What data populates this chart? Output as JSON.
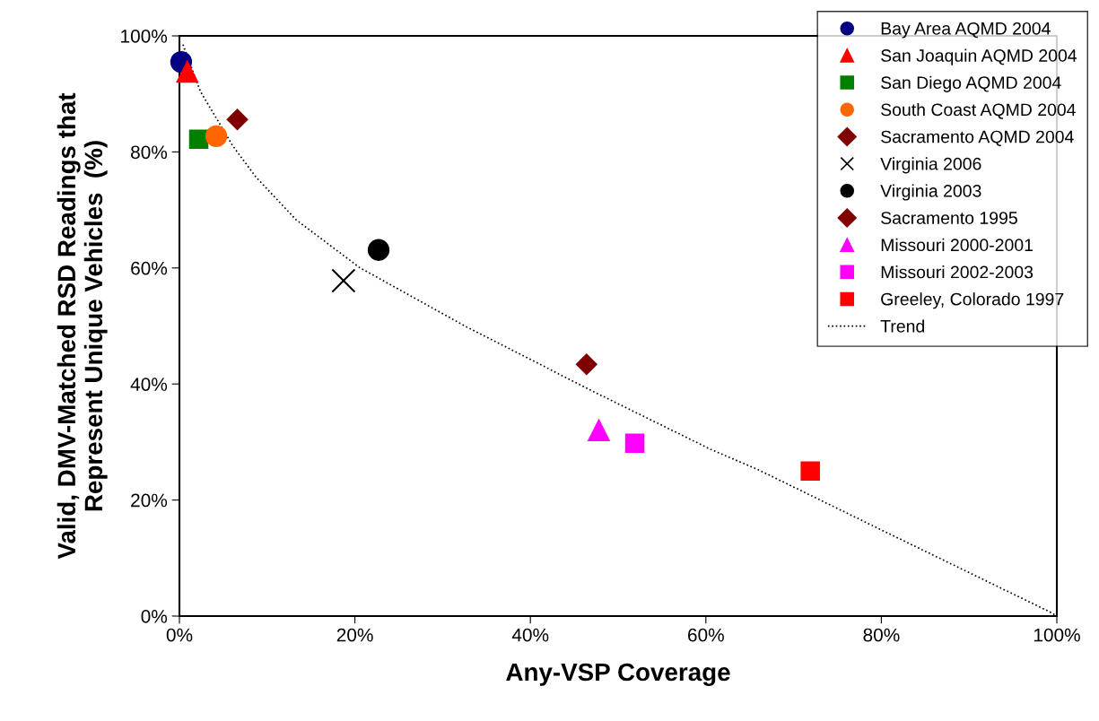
{
  "chart_data": {
    "type": "scatter",
    "xlabel": "Any-VSP Coverage",
    "ylabel": "Valid, DMV-Matched RSD Readings that\nRepresent Unique Vehicles  (%)",
    "xlim": [
      0,
      100
    ],
    "ylim": [
      0,
      100
    ],
    "xticks": [
      {
        "value": 0,
        "label": "0%"
      },
      {
        "value": 20,
        "label": "20%"
      },
      {
        "value": 40,
        "label": "40%"
      },
      {
        "value": 60,
        "label": "60%"
      },
      {
        "value": 80,
        "label": "80%"
      },
      {
        "value": 100,
        "label": "100%"
      }
    ],
    "yticks": [
      {
        "value": 0,
        "label": "0%"
      },
      {
        "value": 20,
        "label": "20%"
      },
      {
        "value": 40,
        "label": "40%"
      },
      {
        "value": 60,
        "label": "60%"
      },
      {
        "value": 80,
        "label": "80%"
      },
      {
        "value": 100,
        "label": "100%"
      }
    ],
    "grid": false,
    "legend": "top right",
    "series": [
      {
        "name": "Bay Area AQMD 2004",
        "color": "#000080",
        "marker": "circle",
        "x": [
          0.2
        ],
        "values": [
          95.5
        ]
      },
      {
        "name": "San Joaquin AQMD 2004",
        "color": "#ff0000",
        "marker": "triangle",
        "x": [
          0.9
        ],
        "values": [
          93.8
        ]
      },
      {
        "name": "San Diego AQMD 2004",
        "color": "#008000",
        "marker": "square",
        "x": [
          2.2
        ],
        "values": [
          82.2
        ]
      },
      {
        "name": "South Coast AQMD 2004",
        "color": "#ff6600",
        "marker": "circle",
        "x": [
          4.2
        ],
        "values": [
          82.7
        ]
      },
      {
        "name": "Sacramento AQMD 2004",
        "color": "#800000",
        "marker": "diamond",
        "x": [
          6.6
        ],
        "values": [
          85.6
        ]
      },
      {
        "name": "Virginia 2006",
        "color": "#000000",
        "marker": "cross",
        "x": [
          18.7
        ],
        "values": [
          57.8
        ]
      },
      {
        "name": "Virginia 2003",
        "color": "#000000",
        "marker": "circle",
        "x": [
          22.7
        ],
        "values": [
          63.1
        ]
      },
      {
        "name": "Sacramento 1995",
        "color": "#800000",
        "marker": "diamond",
        "x": [
          46.4
        ],
        "values": [
          43.4
        ]
      },
      {
        "name": "Missouri 2000-2001",
        "color": "#ff00ff",
        "marker": "triangle",
        "x": [
          47.8
        ],
        "values": [
          32.0
        ]
      },
      {
        "name": "Missouri 2002-2003",
        "color": "#ff00ff",
        "marker": "square",
        "x": [
          51.9
        ],
        "values": [
          29.8
        ]
      },
      {
        "name": "Greeley, Colorado 1997",
        "color": "#ff0000",
        "marker": "square",
        "x": [
          71.9
        ],
        "values": [
          25.0
        ]
      },
      {
        "name": "Trend",
        "type": "line",
        "color": "#000000",
        "marker": "none",
        "line_style": "dotted",
        "x": [
          0.4,
          2.4,
          6.1,
          8.7,
          13.3,
          20.5,
          32.4,
          47.3,
          60.6,
          66.0,
          80.2,
          99.1,
          100
        ],
        "values": [
          98.5,
          90.4,
          81.0,
          75.7,
          68.3,
          60.1,
          50.1,
          38.6,
          28.7,
          25.2,
          14.7,
          0.8,
          0
        ]
      }
    ]
  }
}
